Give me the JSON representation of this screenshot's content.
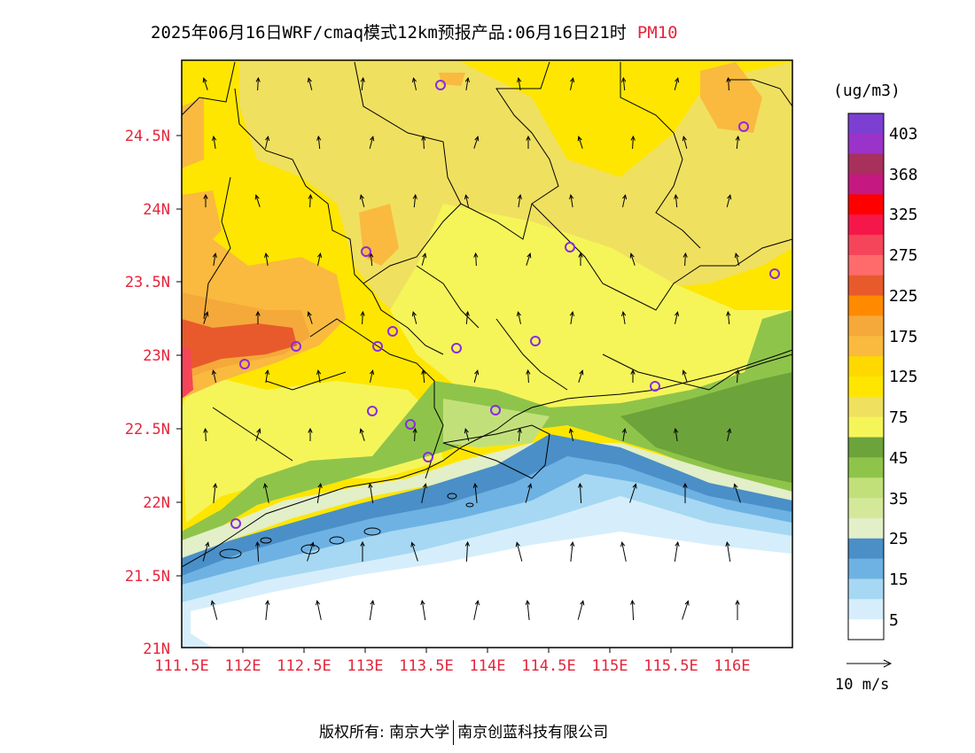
{
  "header": {
    "title": "2025年06月16日WRF/cmaq模式12km预报产品:06月16日21时",
    "pollutant": "PM10"
  },
  "map": {
    "lat_ticks": [
      "24.5N",
      "24N",
      "23.5N",
      "23N",
      "22.5N",
      "22N",
      "21.5N",
      "21N"
    ],
    "lon_ticks": [
      "111.5E",
      "112E",
      "112.5E",
      "113E",
      "113.5E",
      "114E",
      "114.5E",
      "115E",
      "115.5E",
      "116E"
    ],
    "station_marker": "circle-marker-icon",
    "wind_arrow": "wind-arrow-icon"
  },
  "legend": {
    "unit": "(ug/m3)",
    "labels": [
      "403",
      "368",
      "325",
      "275",
      "225",
      "175",
      "125",
      "75",
      "45",
      "35",
      "25",
      "15",
      "5"
    ],
    "colors": [
      "#7c3fd1",
      "#9a33c9",
      "#a8305c",
      "#c51880",
      "#ff0000",
      "#f5174a",
      "#f5455a",
      "#ff6b6b",
      "#e85a2b",
      "#ff8a00",
      "#f5a93a",
      "#f9ba3f",
      "#ffd800",
      "#ffe600",
      "#f0e060",
      "#f5f55a",
      "#6ca33a",
      "#8fc44a",
      "#c2e07a",
      "#d4e89a",
      "#e2efc8",
      "#4a8fc7",
      "#6eb2e3",
      "#a6d8f3",
      "#d6eefb",
      "#ffffff"
    ]
  },
  "reference": {
    "label": "10 m/s"
  },
  "footer": {
    "copyright": "版权所有: 南京大学",
    "company": "南京创蓝科技有限公司"
  }
}
